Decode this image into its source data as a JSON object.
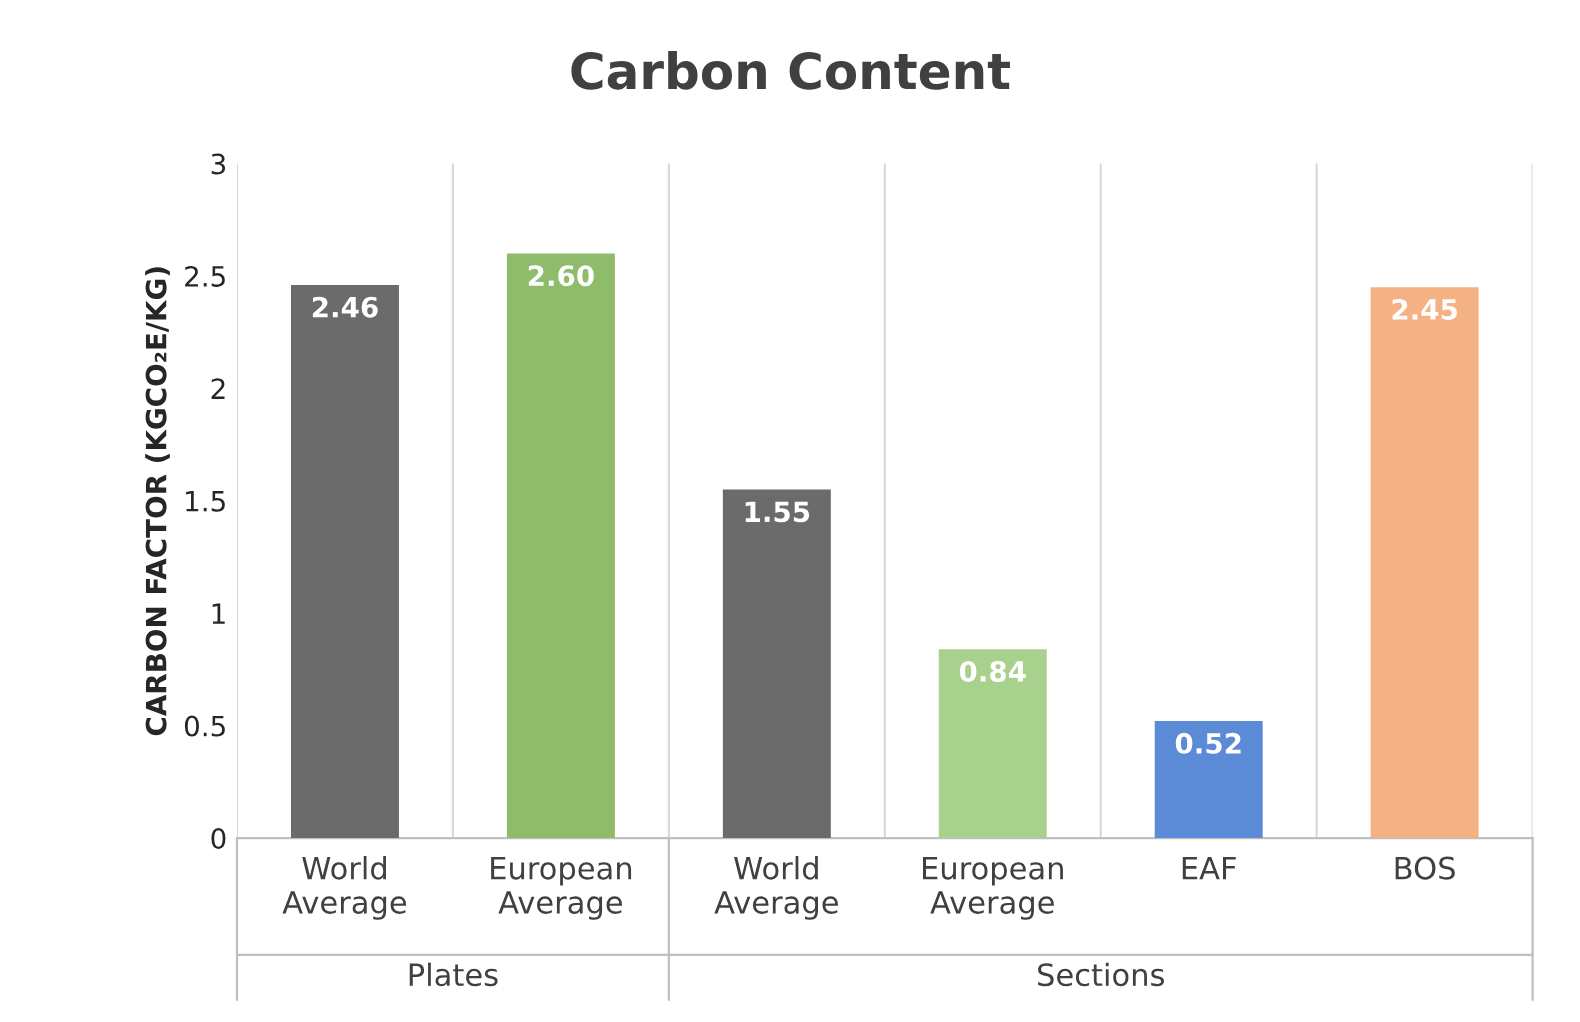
{
  "chart_data": {
    "type": "bar",
    "title": "Carbon Content",
    "ylabel": "CARBON FACTOR (KGCO₂E/KG)",
    "categories": [
      "World\nAverage",
      "European\nAverage",
      "World\nAverage",
      "European\nAverage",
      "EAF",
      "BOS"
    ],
    "values": [
      2.46,
      2.6,
      1.55,
      0.84,
      0.52,
      2.45
    ],
    "value_labels": [
      "2.46",
      "2.60",
      "1.55",
      "0.84",
      "0.52",
      "2.45"
    ],
    "colors": [
      "#6b6b6b",
      "#8fbc6a",
      "#6b6b6b",
      "#a9d18e",
      "#5b8ad6",
      "#f4b183"
    ],
    "ylim": [
      0,
      3
    ],
    "yticks": [
      0,
      0.5,
      1,
      1.5,
      2,
      2.5,
      3
    ],
    "annotations": [
      "Plates",
      "Sections"
    ],
    "grid": false,
    "legend": false
  }
}
